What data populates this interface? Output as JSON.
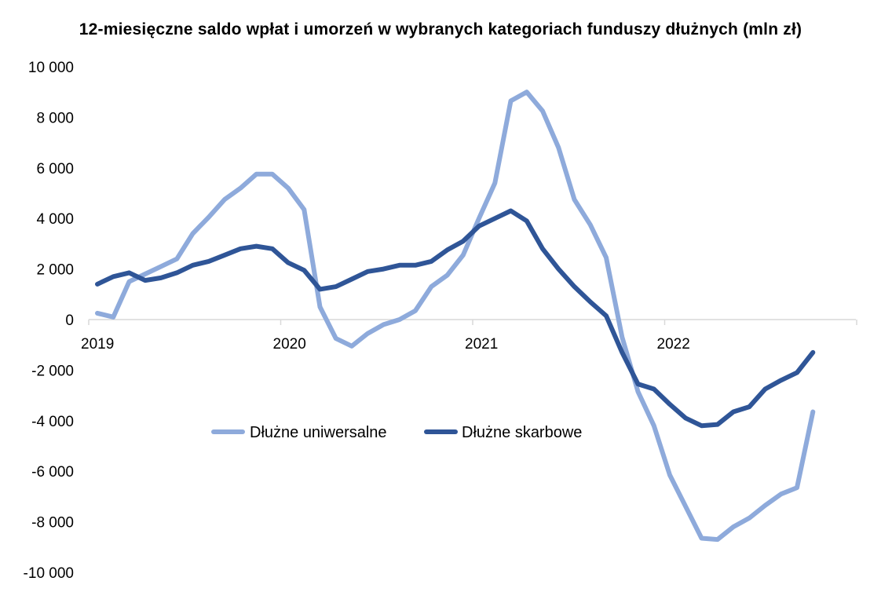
{
  "chart_data": {
    "type": "line",
    "title": "12-miesięczne saldo wpłat i umorzeń w wybranych kategoriach funduszy dłużnych (mln zł)",
    "xlabel": "",
    "ylabel": "",
    "ylim": [
      -10000,
      10000
    ],
    "yticks": [
      10000,
      8000,
      6000,
      4000,
      2000,
      0,
      -2000,
      -4000,
      -6000,
      -8000,
      -10000
    ],
    "ytick_labels": [
      "10 000",
      "8 000",
      "6 000",
      "4 000",
      "2 000",
      "0",
      "-2 000",
      "-4 000",
      "-6 000",
      "-8 000",
      "-10 000"
    ],
    "xtick_labels": [
      "2019",
      "2020",
      "2021",
      "2022"
    ],
    "x": [
      "2019-01",
      "2019-02",
      "2019-03",
      "2019-04",
      "2019-05",
      "2019-06",
      "2019-07",
      "2019-08",
      "2019-09",
      "2019-10",
      "2019-11",
      "2019-12",
      "2020-01",
      "2020-02",
      "2020-03",
      "2020-04",
      "2020-05",
      "2020-06",
      "2020-07",
      "2020-08",
      "2020-09",
      "2020-10",
      "2020-11",
      "2020-12",
      "2021-01",
      "2021-02",
      "2021-03",
      "2021-04",
      "2021-05",
      "2021-06",
      "2021-07",
      "2021-08",
      "2021-09",
      "2021-10",
      "2021-11",
      "2021-12",
      "2022-01",
      "2022-02",
      "2022-03",
      "2022-04",
      "2022-05",
      "2022-06",
      "2022-07",
      "2022-08",
      "2022-09",
      "2022-10"
    ],
    "grid": false,
    "legend_position": "center",
    "series": [
      {
        "name": "Dłużne uniwersalne",
        "color": "#8eaadb",
        "values": [
          250,
          100,
          1500,
          1800,
          2100,
          2400,
          3400,
          4050,
          4750,
          5200,
          5750,
          5750,
          5200,
          4350,
          500,
          -750,
          -1050,
          -550,
          -200,
          0,
          350,
          1300,
          1750,
          2550,
          4000,
          5400,
          8650,
          9000,
          8250,
          6800,
          4750,
          3750,
          2450,
          -700,
          -2850,
          -4200,
          -6150,
          -7400,
          -8650,
          -8700,
          -8200,
          -7850,
          -7350,
          -6900,
          -6650,
          -3650
        ]
      },
      {
        "name": "Dłużne skarbowe",
        "color": "#2f5597",
        "values": [
          1400,
          1700,
          1850,
          1550,
          1650,
          1850,
          2150,
          2300,
          2550,
          2800,
          2900,
          2800,
          2250,
          1950,
          1200,
          1300,
          1600,
          1900,
          2000,
          2150,
          2150,
          2300,
          2750,
          3100,
          3700,
          4000,
          4300,
          3900,
          2800,
          2000,
          1300,
          700,
          150,
          -1300,
          -2550,
          -2750,
          -3350,
          -3900,
          -4200,
          -4150,
          -3650,
          -3450,
          -2750,
          -2400,
          -2100,
          -1300
        ]
      }
    ]
  }
}
